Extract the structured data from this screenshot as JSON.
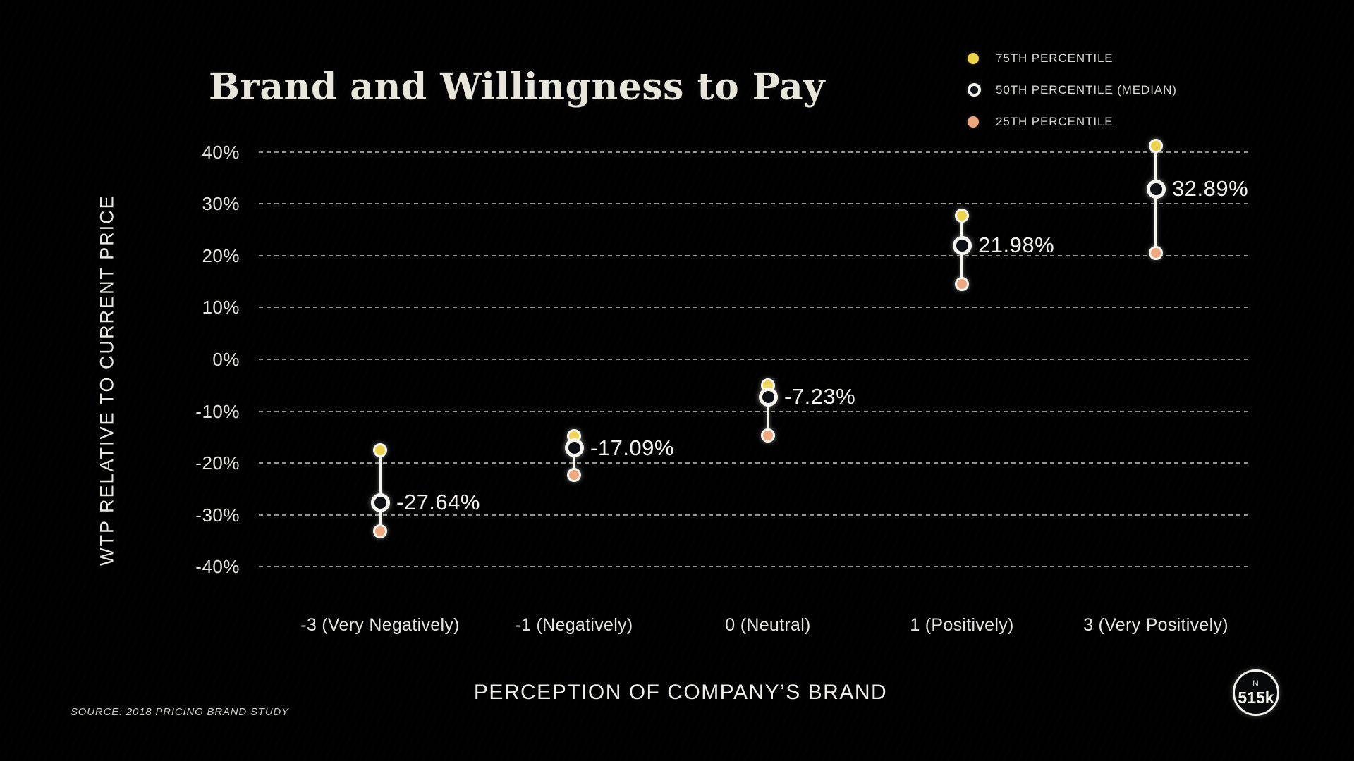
{
  "title": "Brand and Willingness to Pay",
  "legend": {
    "items": [
      {
        "label": "75TH PERCENTILE",
        "marker": "dot",
        "color": "#eed24a"
      },
      {
        "label": "50TH PERCENTILE (MEDIAN)",
        "marker": "ring",
        "color": "#f4f3ed"
      },
      {
        "label": "25TH PERCENTILE",
        "marker": "dot",
        "color": "#efa77d"
      }
    ]
  },
  "y_axis": {
    "label": "WTP RELATIVE TO CURRENT PRICE"
  },
  "x_axis": {
    "label": "PERCEPTION OF COMPANY’S BRAND"
  },
  "footer": {
    "source": "SOURCE: 2018 PRICING BRAND STUDY",
    "badge": {
      "top": "N",
      "value": "515k"
    }
  },
  "colors": {
    "p75": "#eed24a",
    "p25": "#efa77d",
    "median_ring": "#f6f5ef",
    "median_fill": "#0d1116",
    "grid": "#efede4",
    "text": "#e9e8e2"
  },
  "chart_data": {
    "type": "scatter",
    "subtype": "percentile-dot-range",
    "title": "Brand and Willingness to Pay",
    "xlabel": "PERCEPTION OF COMPANY’S BRAND",
    "ylabel": "WTP RELATIVE TO CURRENT PRICE",
    "categories": [
      "-3 (Very Negatively)",
      "-1 (Negatively)",
      "0 (Neutral)",
      "1 (Positively)",
      "3 (Very Positively)"
    ],
    "y_ticks": [
      40,
      30,
      20,
      10,
      0,
      -10,
      -20,
      -30,
      -40
    ],
    "y_tick_labels": [
      "40%",
      "30%",
      "20%",
      "10%",
      "0%",
      "-10%",
      "-20%",
      "-30%",
      "-40%"
    ],
    "ylim": [
      -47,
      44
    ],
    "grid": true,
    "legend_position": "top-right",
    "series": [
      {
        "name": "75TH PERCENTILE",
        "values": [
          -17.5,
          -14.8,
          -5.0,
          27.7,
          41.2
        ]
      },
      {
        "name": "50TH PERCENTILE (MEDIAN)",
        "values": [
          -27.64,
          -17.09,
          -7.23,
          21.98,
          32.89
        ]
      },
      {
        "name": "25TH PERCENTILE",
        "values": [
          -33.2,
          -22.3,
          -14.7,
          14.5,
          20.5
        ]
      }
    ],
    "value_labels": [
      "-27.64%",
      "-17.09%",
      "-7.23%",
      "21.98%",
      "32.89%"
    ],
    "source": "SOURCE: 2018 PRICING BRAND STUDY",
    "sample_size_badge": "515k"
  }
}
